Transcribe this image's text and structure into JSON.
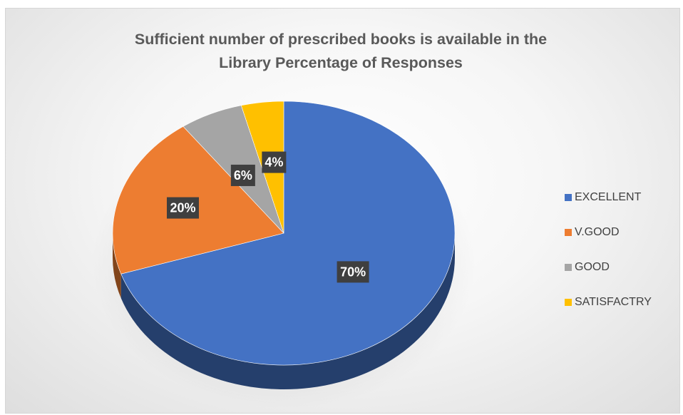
{
  "chart_data": {
    "type": "pie",
    "title_lines": [
      "Sufficient number of prescribed books is available in the",
      "Library Percentage of Responses"
    ],
    "categories": [
      "EXCELLENT",
      "V.GOOD",
      "GOOD",
      "SATISFACTRY"
    ],
    "values": [
      70,
      20,
      6,
      4
    ],
    "data_labels": [
      "70%",
      "20%",
      "6%",
      "4%"
    ],
    "colors": [
      "#4472c4",
      "#ed7d31",
      "#a5a5a5",
      "#ffc000"
    ],
    "style": "3d-pie",
    "legend_position": "right"
  }
}
